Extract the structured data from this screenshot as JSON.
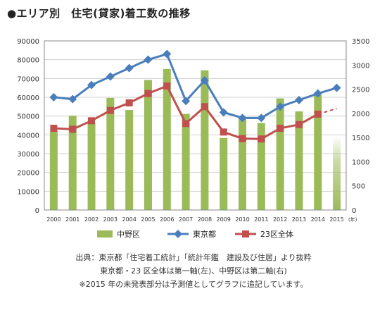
{
  "chart_data": {
    "type": "bar",
    "title": "●エリア別　住宅(貸家)着工数の推移",
    "categories": [
      "2000",
      "2001",
      "2002",
      "2003",
      "2004",
      "2005",
      "2006",
      "2007",
      "2008",
      "2009",
      "2010",
      "2011",
      "2012",
      "2013",
      "2014",
      "2015"
    ],
    "x_unit": "(年)",
    "left_axis": {
      "ylim": [
        0,
        90000
      ],
      "ticks": [
        "0",
        "10000",
        "20000",
        "30000",
        "40000",
        "50000",
        "60000",
        "70000",
        "80000",
        "90000"
      ]
    },
    "right_axis": {
      "ylim": [
        0,
        3500
      ],
      "ticks": [
        "0",
        "500",
        "1000",
        "1500",
        "2000",
        "2500",
        "3000",
        "3500"
      ]
    },
    "series": [
      {
        "name": "中野区",
        "type": "bar",
        "axis": "right",
        "color": "#9bbb59",
        "values": [
          1630,
          1950,
          1790,
          2320,
          2070,
          2690,
          2920,
          1990,
          2890,
          1490,
          1920,
          1800,
          2310,
          2040,
          2380,
          1530
        ],
        "forecast_from_index": 15
      },
      {
        "name": "東京都",
        "type": "line",
        "axis": "left",
        "color": "#4a7ebb",
        "marker": "diamond",
        "values": [
          60000,
          59000,
          66500,
          71000,
          75500,
          80000,
          83000,
          58000,
          69000,
          52000,
          49000,
          49000,
          55000,
          58500,
          62000,
          65000
        ]
      },
      {
        "name": "23区全体",
        "type": "line",
        "axis": "left",
        "color": "#c0504d",
        "marker": "square",
        "values": [
          43500,
          43000,
          47500,
          53000,
          57000,
          62000,
          66000,
          46000,
          55000,
          41500,
          38000,
          37800,
          43500,
          45500,
          51000,
          54000
        ],
        "forecast_from_index": 14
      }
    ],
    "legend_position": "bottom",
    "grid": true
  },
  "notes": [
    "出典：東京都「住宅着工統計」「統計年鑑　建設及び住居」より抜粋",
    "東京都・23 区全体は第一軸(左)、中野区は第二軸(右)",
    "※2015 年の未発表部分は予測値としてグラフに追記しています。"
  ]
}
